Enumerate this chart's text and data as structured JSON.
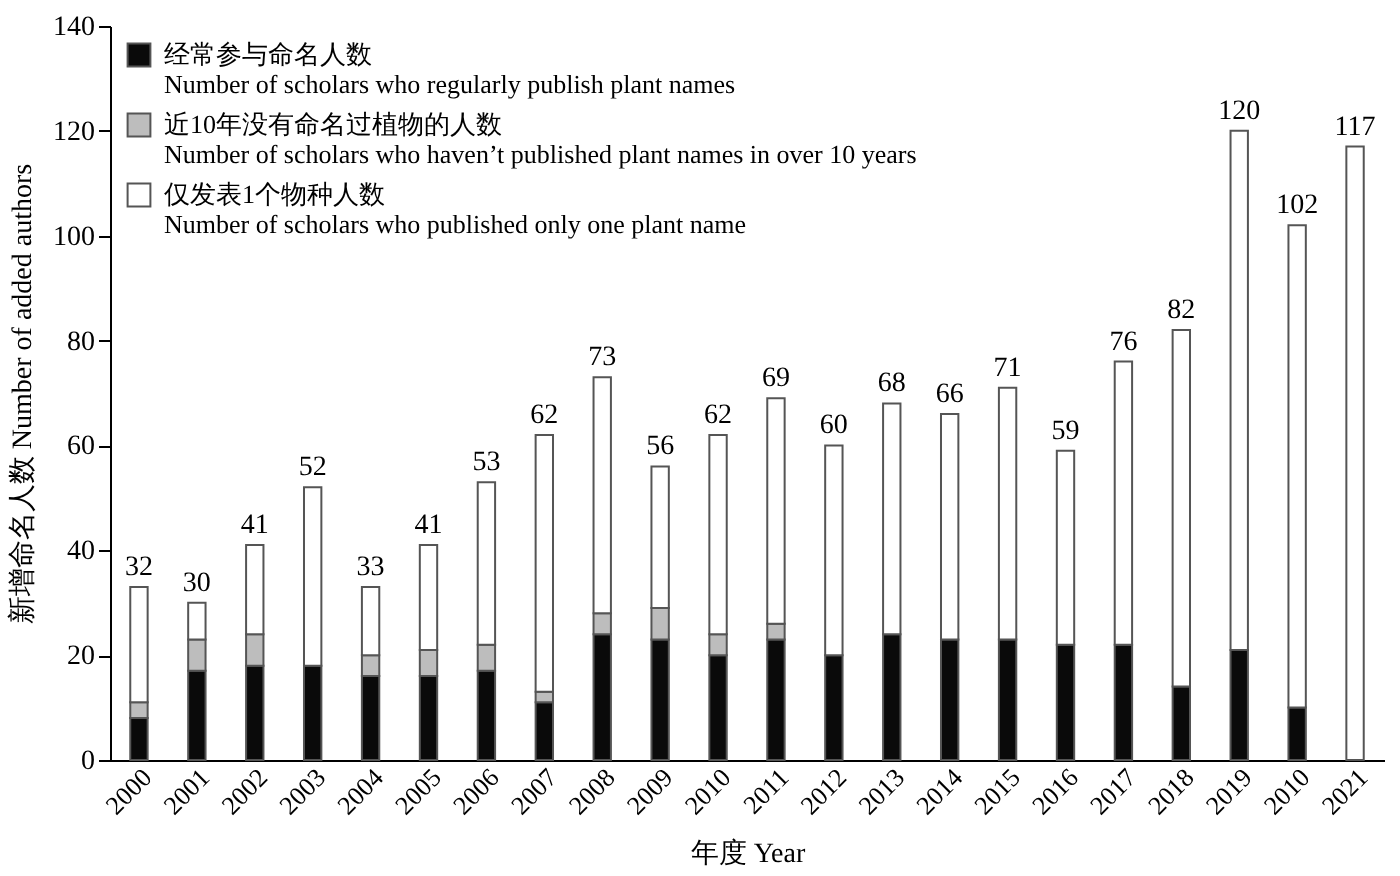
{
  "chart_data": {
    "type": "bar",
    "stacked": true,
    "xlabel": "年度 Year",
    "ylabel": "新增命名人数 Number of added authors",
    "categories": [
      "2000",
      "2001",
      "2002",
      "2003",
      "2004",
      "2005",
      "2006",
      "2007",
      "2008",
      "2009",
      "2010",
      "2011",
      "2012",
      "2013",
      "2014",
      "2015",
      "2016",
      "2017",
      "2018",
      "2019",
      "2010",
      "2021"
    ],
    "series": [
      {
        "name": "经常参与命名人数\nNumber of scholars who regularly publish plant names",
        "color": "#0a0a0a",
        "values": [
          8,
          17,
          18,
          18,
          16,
          16,
          17,
          11,
          24,
          23,
          20,
          23,
          20,
          24,
          23,
          23,
          22,
          22,
          14,
          21,
          10,
          0
        ]
      },
      {
        "name": "近10年没有命名过植物的人数\nNumber of scholars who haven’t published plant names in over 10 years",
        "color": "#bdbdbd",
        "values": [
          3,
          6,
          6,
          0,
          4,
          5,
          5,
          2,
          4,
          6,
          4,
          3,
          0,
          0,
          0,
          0,
          0,
          0,
          0,
          0,
          0,
          0
        ]
      },
      {
        "name": "仅发表1个物种人数\nNumber of scholars who published only one plant name",
        "color": "#ffffff",
        "values": [
          22,
          7,
          17,
          34,
          13,
          20,
          31,
          49,
          45,
          27,
          38,
          43,
          40,
          44,
          43,
          48,
          37,
          54,
          68,
          99,
          92,
          117
        ]
      }
    ],
    "totals": [
      "32",
      "30",
      "41",
      "52",
      "33",
      "41",
      "53",
      "62",
      "73",
      "56",
      "62",
      "69",
      "60",
      "68",
      "66",
      "71",
      "59",
      "76",
      "82",
      "120",
      "102",
      "117"
    ],
    "ylim": [
      0,
      140
    ],
    "yticks": [
      0,
      20,
      40,
      60,
      80,
      100,
      120,
      140
    ],
    "grid": false,
    "legend": "top left"
  }
}
